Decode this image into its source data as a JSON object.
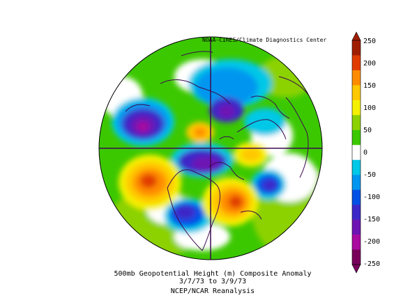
{
  "credit": "NOAA-CIRES/Climate Diagnostics Center",
  "caption": {
    "line1": "500mb Geopotential Height (m) Composite Anomaly",
    "line2": "3/7/73  to 3/9/73",
    "line3": "NCEP/NCAR Reanalysis"
  },
  "colorbar": {
    "labels": [
      "250",
      "200",
      "150",
      "100",
      "50",
      "0",
      "-50",
      "-100",
      "-150",
      "-200",
      "-250"
    ],
    "colors": [
      "#a01e00",
      "#e13c00",
      "#ff8c00",
      "#ffc800",
      "#f5f000",
      "#8cd200",
      "#3cc800",
      "#ffffff",
      "#00c8e6",
      "#0096f0",
      "#0050e6",
      "#3c28c8",
      "#6e14b4",
      "#aa0aa0",
      "#78005a"
    ]
  },
  "projection": "north-polar-stereographic"
}
